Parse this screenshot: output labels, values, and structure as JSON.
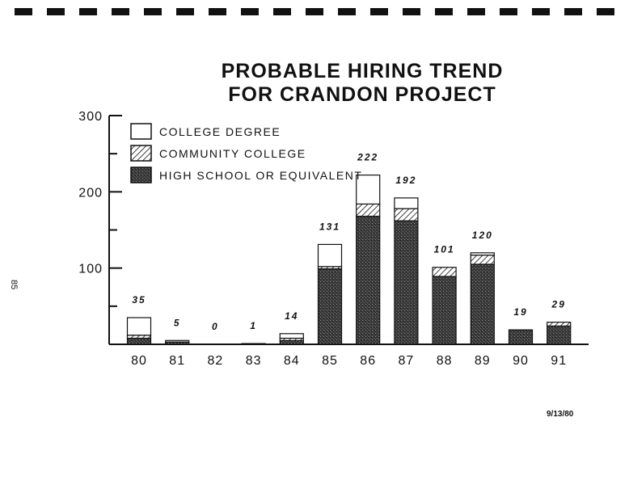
{
  "page": {
    "side_number": "85",
    "date": "9/13/80"
  },
  "chart_data": {
    "type": "bar",
    "stacked": true,
    "title": [
      "PROBABLE HIRING TREND",
      "FOR CRANDON PROJECT"
    ],
    "categories": [
      "80",
      "81",
      "82",
      "83",
      "84",
      "85",
      "86",
      "87",
      "88",
      "89",
      "90",
      "91"
    ],
    "totals": [
      35,
      5,
      0,
      1,
      14,
      131,
      222,
      192,
      101,
      120,
      19,
      29
    ],
    "series": [
      {
        "name": "HIGH SCHOOL OR EQUIVALENT",
        "pattern": "stipple",
        "values": [
          8,
          3,
          0,
          0,
          5,
          99,
          168,
          162,
          89,
          105,
          19,
          24
        ]
      },
      {
        "name": "COMMUNITY COLLEGE",
        "pattern": "hatch",
        "values": [
          4,
          0,
          0,
          0,
          3,
          3,
          16,
          16,
          12,
          12,
          0,
          5
        ]
      },
      {
        "name": "COLLEGE DEGREE",
        "pattern": "blank",
        "values": [
          23,
          2,
          0,
          1,
          6,
          29,
          38,
          14,
          0,
          3,
          0,
          0
        ]
      }
    ],
    "ylim": [
      0,
      300
    ],
    "yticks": [
      0,
      100,
      200,
      300
    ],
    "ytick_labels": [
      "",
      "100",
      "200",
      "300"
    ],
    "legend_position": "top-left",
    "grid": false
  }
}
